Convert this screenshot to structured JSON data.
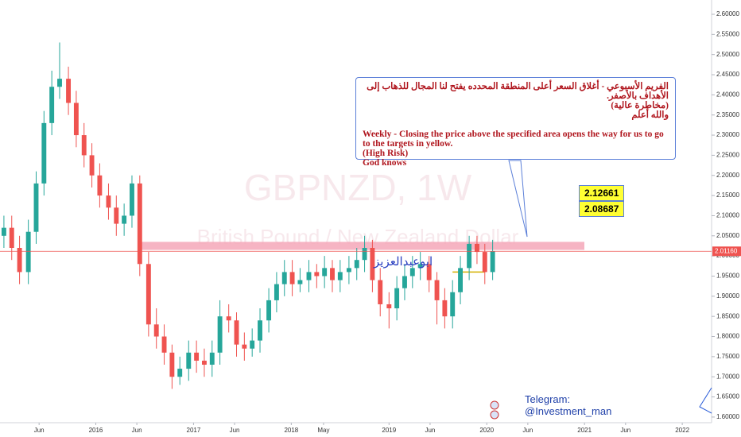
{
  "chart_data": {
    "type": "candlestick",
    "title": "GBPNZD, 1W",
    "subtitle": "British Pound / New Zealand Dollar",
    "up_color": "#26a69a",
    "down_color": "#ef5350",
    "xlim": [
      2015.02,
      2022.3
    ],
    "ylim": [
      1.586,
      2.6355
    ],
    "xticks": [
      {
        "value": 2015.42,
        "label": "Jun"
      },
      2016,
      {
        "value": 2016.42,
        "label": "Jun"
      },
      2017,
      {
        "value": 2017.42,
        "label": "Jun"
      },
      2018,
      {
        "value": 2018.33,
        "label": "May"
      },
      2019,
      {
        "value": 2019.42,
        "label": "Jun"
      },
      2020,
      {
        "value": 2020.42,
        "label": "Jun"
      },
      2021,
      {
        "value": 2021.42,
        "label": "Jun"
      },
      2022
    ],
    "yticks": [
      {
        "value": 1.6,
        "label": "1.60000"
      },
      {
        "value": 1.65,
        "label": "1.65000"
      },
      {
        "value": 1.7,
        "label": "1.70000"
      },
      {
        "value": 1.75,
        "label": "1.75000"
      },
      {
        "value": 1.8,
        "label": "1.80000"
      },
      {
        "value": 1.85,
        "label": "1.85000"
      },
      {
        "value": 1.9,
        "label": "1.90000"
      },
      {
        "value": 1.95,
        "label": "1.95000"
      },
      {
        "value": 2.0,
        "label": "2.00000"
      },
      {
        "value": 2.05,
        "label": "2.05000"
      },
      {
        "value": 2.1,
        "label": "2.10000"
      },
      {
        "value": 2.15,
        "label": "2.15000"
      },
      {
        "value": 2.2,
        "label": "2.20000"
      },
      {
        "value": 2.25,
        "label": "2.25000"
      },
      {
        "value": 2.3,
        "label": "2.30000"
      },
      {
        "value": 2.35,
        "label": "2.35000"
      },
      {
        "value": 2.4,
        "label": "2.40000"
      },
      {
        "value": 2.45,
        "label": "2.45000"
      },
      {
        "value": 2.5,
        "label": "2.50000"
      },
      {
        "value": 2.55,
        "label": "2.55000"
      },
      {
        "value": 2.6,
        "label": "2.60000"
      }
    ],
    "x": [
      2015.06,
      2015.14,
      2015.22,
      2015.31,
      2015.39,
      2015.47,
      2015.55,
      2015.63,
      2015.72,
      2015.8,
      2015.88,
      2015.96,
      2016.04,
      2016.13,
      2016.21,
      2016.29,
      2016.37,
      2016.45,
      2016.54,
      2016.62,
      2016.7,
      2016.78,
      2016.86,
      2016.95,
      2017.03,
      2017.11,
      2017.19,
      2017.27,
      2017.36,
      2017.44,
      2017.52,
      2017.6,
      2017.68,
      2017.77,
      2017.85,
      2017.93,
      2018.01,
      2018.09,
      2018.18,
      2018.26,
      2018.34,
      2018.42,
      2018.5,
      2018.59,
      2018.67,
      2018.75,
      2018.83,
      2018.91,
      2019.0,
      2019.08,
      2019.16,
      2019.24,
      2019.32,
      2019.41,
      2019.49,
      2019.57,
      2019.65,
      2019.73,
      2019.82,
      2019.9,
      2019.98,
      2020.06
    ],
    "open": [
      2.05,
      2.07,
      2.02,
      1.96,
      2.06,
      2.18,
      2.33,
      2.42,
      2.44,
      2.38,
      2.3,
      2.25,
      2.2,
      2.15,
      2.12,
      2.08,
      2.1,
      2.18,
      1.98,
      1.83,
      1.8,
      1.76,
      1.7,
      1.72,
      1.76,
      1.74,
      1.73,
      1.76,
      1.85,
      1.84,
      1.78,
      1.77,
      1.79,
      1.84,
      1.89,
      1.93,
      1.96,
      1.93,
      1.94,
      1.96,
      1.95,
      1.97,
      1.94,
      1.96,
      1.97,
      1.99,
      2.02,
      1.94,
      1.88,
      1.87,
      1.92,
      1.95,
      1.97,
      1.98,
      1.94,
      1.89,
      1.85,
      1.91,
      1.97,
      2.03,
      2.01,
      1.96
    ],
    "high": [
      2.1,
      2.1,
      2.05,
      2.09,
      2.21,
      2.36,
      2.46,
      2.53,
      2.47,
      2.41,
      2.33,
      2.28,
      2.23,
      2.18,
      2.15,
      2.13,
      2.2,
      2.2,
      2.01,
      1.87,
      1.83,
      1.78,
      1.75,
      1.79,
      1.79,
      1.77,
      1.79,
      1.89,
      1.88,
      1.86,
      1.81,
      1.82,
      1.87,
      1.92,
      1.96,
      1.99,
      1.99,
      1.97,
      1.99,
      1.98,
      2.0,
      1.99,
      1.99,
      2.0,
      2.02,
      2.05,
      2.04,
      1.97,
      1.91,
      1.95,
      1.98,
      2.0,
      2.01,
      2.0,
      1.96,
      1.92,
      1.94,
      2.0,
      2.05,
      2.05,
      2.03,
      2.04
    ],
    "low": [
      2.02,
      1.99,
      1.93,
      1.93,
      2.03,
      2.15,
      2.3,
      2.39,
      2.35,
      2.27,
      2.22,
      2.17,
      2.12,
      2.09,
      2.05,
      2.05,
      2.07,
      1.95,
      1.8,
      1.77,
      1.73,
      1.67,
      1.68,
      1.69,
      1.71,
      1.7,
      1.7,
      1.73,
      1.81,
      1.75,
      1.74,
      1.75,
      1.76,
      1.81,
      1.86,
      1.9,
      1.9,
      1.91,
      1.91,
      1.92,
      1.92,
      1.91,
      1.91,
      1.93,
      1.94,
      1.96,
      1.91,
      1.85,
      1.82,
      1.84,
      1.89,
      1.92,
      1.94,
      1.91,
      1.83,
      1.82,
      1.82,
      1.88,
      1.94,
      1.98,
      1.93,
      1.94
    ],
    "close": [
      2.07,
      2.02,
      1.96,
      2.06,
      2.18,
      2.33,
      2.42,
      2.44,
      2.38,
      2.3,
      2.25,
      2.2,
      2.15,
      2.12,
      2.08,
      2.1,
      2.18,
      1.98,
      1.83,
      1.8,
      1.76,
      1.7,
      1.72,
      1.76,
      1.74,
      1.73,
      1.76,
      1.85,
      1.84,
      1.78,
      1.77,
      1.79,
      1.84,
      1.89,
      1.93,
      1.96,
      1.93,
      1.94,
      1.96,
      1.95,
      1.97,
      1.94,
      1.96,
      1.97,
      1.99,
      2.02,
      1.94,
      1.88,
      1.87,
      1.92,
      1.95,
      1.97,
      1.98,
      1.94,
      1.89,
      1.85,
      1.91,
      1.97,
      2.03,
      2.01,
      1.96,
      2.0116
    ],
    "last_price": {
      "value": 2.0116,
      "label": "2.01160"
    },
    "zone": {
      "low": 2.015,
      "high": 2.035,
      "color": "#f4a7b9"
    },
    "support_line": {
      "value": 1.96,
      "color": "#d4b000"
    },
    "targets": [
      2.12661,
      2.08687
    ],
    "signature": "ابوعبدالعزيز",
    "annotation_ar": [
      "الفريم الأسبوعي - أغلاق السعر أعلى المنطقة المحدده يفتح لنا المجال للذهاب إلى الأهداف بالأصفر.",
      "(مخاطرة عالية)",
      "والله أعلم"
    ],
    "annotation_en": [
      "Weekly - Closing the price above the specified area opens the way for us to go to the targets in yellow.",
      "(High Risk)",
      "God knows"
    ],
    "telegram": [
      "Telegram:",
      "@Investment_man"
    ]
  }
}
